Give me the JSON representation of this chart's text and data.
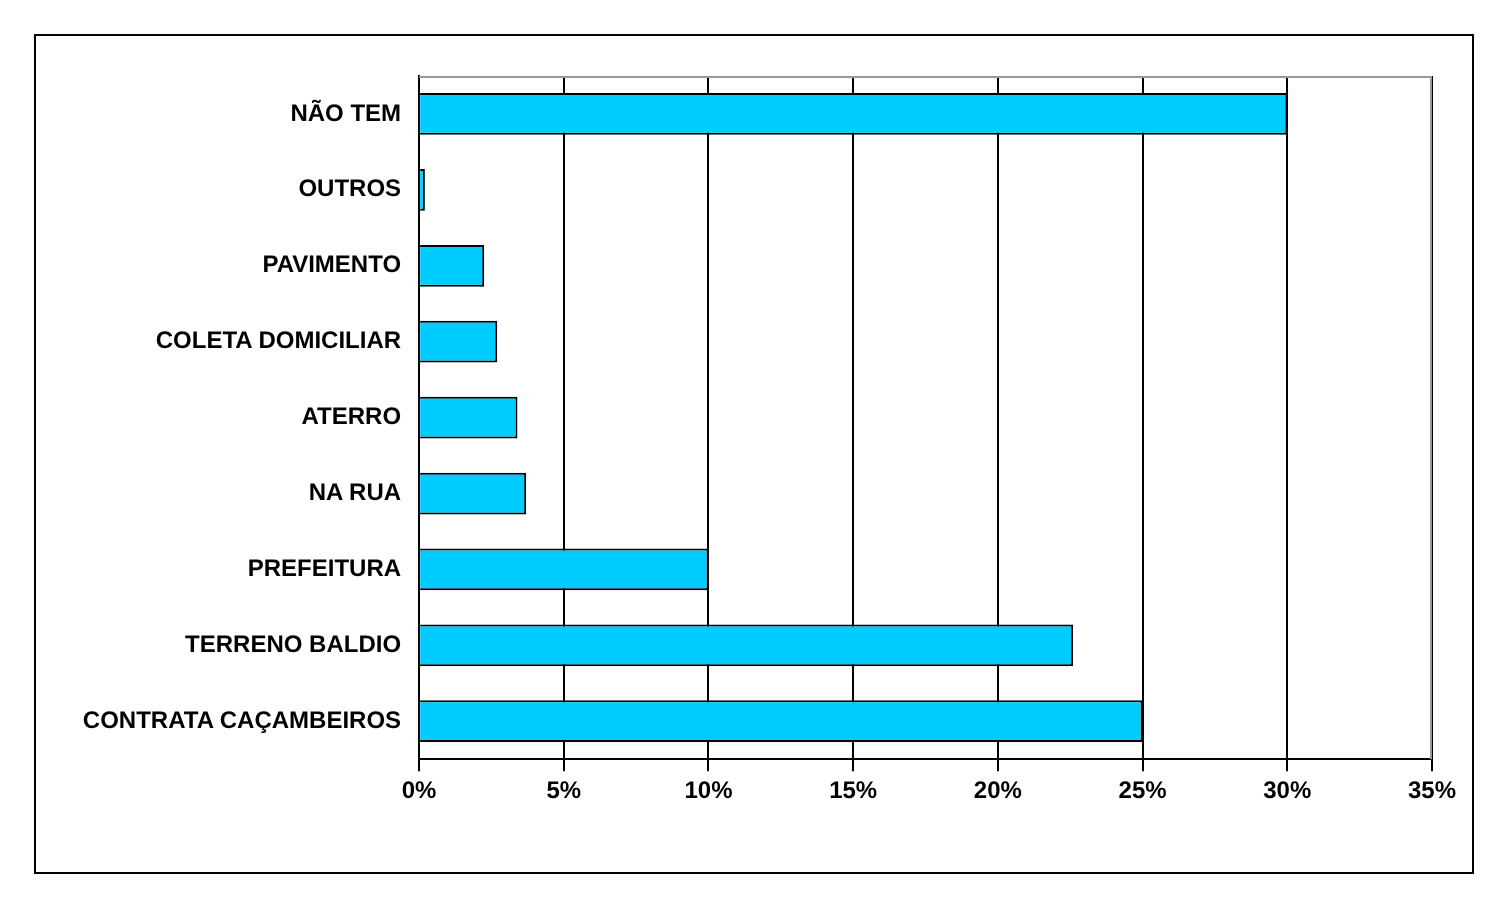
{
  "chart_data": {
    "type": "bar",
    "orientation": "horizontal",
    "categories": [
      "NÃO TEM",
      "OUTROS",
      "PAVIMENTO",
      "COLETA DOMICILIAR",
      "ATERRO",
      "NA RUA",
      "PREFEITURA",
      "TERRENO BALDIO",
      "CONTRATA CAÇAMBEIROS"
    ],
    "values": [
      30,
      0.2,
      2.25,
      2.7,
      3.4,
      3.7,
      10,
      22.6,
      25
    ],
    "color": "#00ccff",
    "xlim": [
      0,
      35
    ],
    "xticks": [
      {
        "value": 0,
        "label": "0%"
      },
      {
        "value": 5,
        "label": "5%"
      },
      {
        "value": 10,
        "label": "10%"
      },
      {
        "value": 15,
        "label": "15%"
      },
      {
        "value": 20,
        "label": "20%"
      },
      {
        "value": 25,
        "label": "25%"
      },
      {
        "value": 30,
        "label": "30%"
      },
      {
        "value": 35,
        "label": "35%"
      }
    ],
    "grid": "x",
    "legend": false
  }
}
